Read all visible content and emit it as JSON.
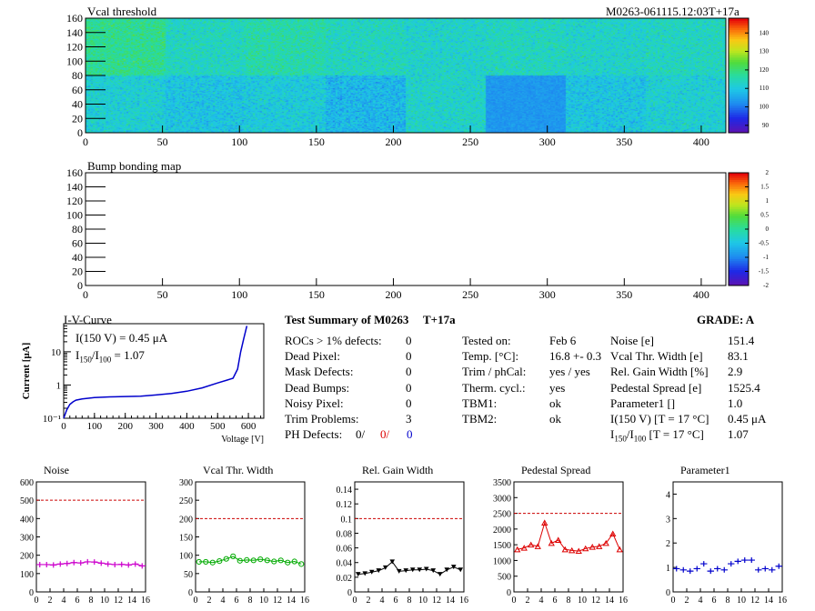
{
  "header": {
    "map_title": "Vcal threshold",
    "module_label": "M0263-061115.12:03T+17a",
    "bump_title": "Bump bonding map"
  },
  "maps": {
    "x_ticks": [
      0,
      50,
      100,
      150,
      200,
      250,
      300,
      350,
      400
    ],
    "y_ticks": [
      0,
      20,
      40,
      60,
      80,
      100,
      120,
      140,
      160
    ],
    "vcal_palette_ticks": [
      90,
      100,
      110,
      120,
      130,
      140
    ],
    "bump_palette_ticks": [
      "-2",
      "-1.5",
      "-1",
      "-0.5",
      "0",
      "0.5",
      "1",
      "1.5",
      "2"
    ],
    "vcal_roc_means": [
      [
        112,
        110,
        111,
        108,
        113,
        104,
        110,
        112
      ],
      [
        118,
        114,
        116,
        114,
        113,
        114,
        113,
        114
      ]
    ]
  },
  "iv": {
    "title": "I-V-Curve",
    "ylabel": "Current [μA]",
    "xlabel": "Voltage [V]",
    "x_ticks": [
      "0",
      "100",
      "200",
      "300",
      "400",
      "500",
      "600"
    ],
    "annotation_line1": "I(150 V) = 0.45 μA",
    "annotation_line2_i": "I",
    "annotation_line2_sub1": "150",
    "annotation_line2_slash": "/I",
    "annotation_line2_sub2": "100",
    "annotation_line2_val": " =  1.07"
  },
  "summary": {
    "title": "Test Summary of M0263",
    "subtitle": "T+17a",
    "grade": "GRADE:  A",
    "left_rows": [
      {
        "label": "ROCs > 1% defects:",
        "value": "0"
      },
      {
        "label": "Dead Pixel:",
        "value": "0"
      },
      {
        "label": "Mask Defects:",
        "value": "0"
      },
      {
        "label": "Dead Bumps:",
        "value": "0"
      },
      {
        "label": "Noisy Pixel:",
        "value": "0"
      },
      {
        "label": "Trim Problems:",
        "value": "3"
      }
    ],
    "ph_defects": {
      "label": "PH Defects:",
      "v1": "0/",
      "v2": "0/",
      "v3": "0"
    },
    "mid_rows": [
      {
        "label": "Tested on:",
        "value": "Feb 6"
      },
      {
        "label": "Temp. [°C]:",
        "value": "16.8 +- 0.3"
      },
      {
        "label": "Trim / phCal:",
        "value": "yes / yes"
      },
      {
        "label": "Therm. cycl.:",
        "value": "yes"
      },
      {
        "label": "TBM1:",
        "value": "ok"
      },
      {
        "label": "TBM2:",
        "value": "ok"
      }
    ],
    "right_rows": [
      {
        "label": "Noise [e]",
        "value": "151.4"
      },
      {
        "label": "Vcal Thr. Width [e]",
        "value": "83.1"
      },
      {
        "label": "Rel. Gain Width [%]",
        "value": "2.9"
      },
      {
        "label": "Pedestal Spread [e]",
        "value": "1525.4"
      },
      {
        "label": "Parameter1 []",
        "value": "1.0"
      },
      {
        "label": "I(150 V) [T = 17 °C]",
        "value": "0.45 μA"
      }
    ],
    "ratio_row": {
      "i": "I",
      "sub1": "150",
      "slash": "/I",
      "sub2": "100",
      "rest": "  [T = 17 °C]",
      "value": "1.07"
    }
  },
  "colors": {
    "noise": "#cc00cc",
    "vcal": "#00aa00",
    "gain": "#000000",
    "pedestal": "#dd0000",
    "param1": "#0000cc",
    "limit_line": "#cc0000",
    "ph_v2": "#dd0000",
    "ph_v3": "#0000cc"
  },
  "chart_data": [
    {
      "type": "line",
      "title": "I-V-Curve",
      "xlabel": "Voltage [V]",
      "ylabel": "Current [μA]",
      "xlim": [
        0,
        650
      ],
      "ylim": [
        0.1,
        70
      ],
      "yscale": "log",
      "x": [
        0,
        10,
        20,
        30,
        40,
        60,
        80,
        100,
        150,
        200,
        250,
        300,
        350,
        400,
        450,
        500,
        530,
        550,
        565,
        575,
        585,
        595
      ],
      "y": [
        0.1,
        0.18,
        0.26,
        0.31,
        0.35,
        0.38,
        0.4,
        0.42,
        0.44,
        0.45,
        0.46,
        0.5,
        0.56,
        0.65,
        0.82,
        1.15,
        1.4,
        1.6,
        3.0,
        10,
        25,
        60
      ]
    },
    {
      "type": "line",
      "title": "Noise",
      "x": [
        0,
        1,
        2,
        3,
        4,
        5,
        6,
        7,
        8,
        9,
        10,
        11,
        12,
        13,
        14,
        15
      ],
      "y": [
        149,
        149,
        147,
        152,
        155,
        160,
        158,
        164,
        163,
        157,
        152,
        149,
        150,
        147,
        152,
        142
      ],
      "ylim": [
        0,
        600
      ],
      "xlim": [
        0,
        16
      ],
      "limit": 500,
      "y_ticks": [
        0,
        100,
        200,
        300,
        400,
        500,
        600
      ],
      "x_ticks": [
        0,
        2,
        4,
        6,
        8,
        10,
        12,
        14,
        16
      ]
    },
    {
      "type": "line",
      "title": "Vcal Thr. Width",
      "x": [
        0,
        1,
        2,
        3,
        4,
        5,
        6,
        7,
        8,
        9,
        10,
        11,
        12,
        13,
        14,
        15
      ],
      "y": [
        82,
        82,
        80,
        84,
        90,
        97,
        85,
        87,
        86,
        89,
        86,
        83,
        86,
        80,
        83,
        76
      ],
      "ylim": [
        0,
        300
      ],
      "xlim": [
        0,
        16
      ],
      "limit": 200,
      "y_ticks": [
        0,
        50,
        100,
        150,
        200,
        250,
        300
      ],
      "x_ticks": [
        0,
        2,
        4,
        6,
        8,
        10,
        12,
        14,
        16
      ]
    },
    {
      "type": "line",
      "title": "Rel. Gain Width",
      "x": [
        0,
        1,
        2,
        3,
        4,
        5,
        6,
        7,
        8,
        9,
        10,
        11,
        12,
        13,
        14,
        15
      ],
      "y": [
        0.024,
        0.025,
        0.027,
        0.029,
        0.033,
        0.041,
        0.028,
        0.029,
        0.03,
        0.03,
        0.031,
        0.029,
        0.024,
        0.03,
        0.034,
        0.03
      ],
      "ylim": [
        0,
        0.15
      ],
      "xlim": [
        0,
        16
      ],
      "limit": 0.1,
      "y_ticks": [
        0,
        0.02,
        0.04,
        0.06,
        0.08,
        0.1,
        0.12,
        0.14
      ],
      "x_ticks": [
        0,
        2,
        4,
        6,
        8,
        10,
        12,
        14,
        16
      ]
    },
    {
      "type": "line",
      "title": "Pedestal Spread",
      "x": [
        0,
        1,
        2,
        3,
        4,
        5,
        6,
        7,
        8,
        9,
        10,
        11,
        12,
        13,
        14,
        15
      ],
      "y": [
        1350,
        1400,
        1500,
        1450,
        2200,
        1550,
        1650,
        1350,
        1320,
        1300,
        1380,
        1430,
        1450,
        1550,
        1850,
        1350
      ],
      "ylim": [
        0,
        3500
      ],
      "xlim": [
        0,
        16
      ],
      "limit": 2500,
      "y_ticks": [
        0,
        500,
        1000,
        1500,
        2000,
        2500,
        3000,
        3500
      ],
      "x_ticks": [
        0,
        2,
        4,
        6,
        8,
        10,
        12,
        14,
        16
      ]
    },
    {
      "type": "scatter",
      "title": "Parameter1",
      "x": [
        0,
        1,
        2,
        3,
        4,
        5,
        6,
        7,
        8,
        9,
        10,
        11,
        12,
        13,
        14,
        15
      ],
      "y": [
        0.95,
        0.9,
        0.85,
        0.95,
        1.15,
        0.85,
        0.95,
        0.9,
        1.15,
        1.25,
        1.3,
        1.3,
        0.9,
        0.95,
        0.9,
        1.05
      ],
      "ylim": [
        0,
        4.5
      ],
      "xlim": [
        0,
        16
      ],
      "y_ticks": [
        0,
        1,
        2,
        3,
        4
      ],
      "x_ticks": [
        0,
        2,
        4,
        6,
        8,
        10,
        12,
        14,
        16
      ]
    }
  ]
}
